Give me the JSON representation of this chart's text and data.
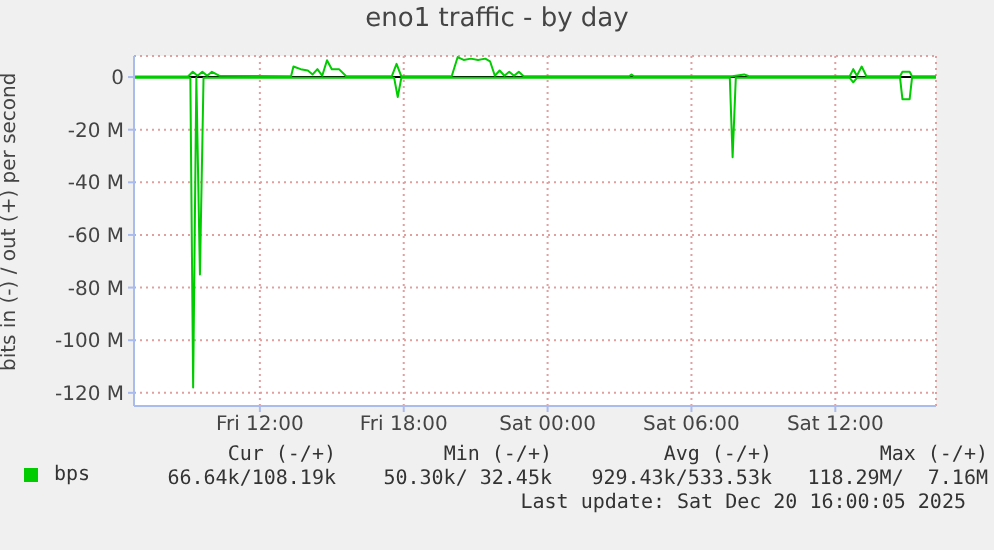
{
  "chart_data": {
    "type": "line",
    "title": "eno1 traffic - by day",
    "ylabel": "bits in (-) / out (+) per second",
    "xlim": [
      "2025-12-19T06:45",
      "2025-12-20T16:12"
    ],
    "xticks": [
      {
        "value": "2025-12-19T12:00",
        "label": "Fri 12:00"
      },
      {
        "value": "2025-12-19T18:00",
        "label": "Fri 18:00"
      },
      {
        "value": "2025-12-20T00:00",
        "label": "Sat 00:00"
      },
      {
        "value": "2025-12-20T06:00",
        "label": "Sat 06:00"
      },
      {
        "value": "2025-12-20T12:00",
        "label": "Sat 12:00"
      }
    ],
    "ylim": [
      -125,
      8
    ],
    "yticks": [
      {
        "value": -120,
        "label": "-120 M"
      },
      {
        "value": -100,
        "label": "-100 M"
      },
      {
        "value": -80,
        "label": "-80 M"
      },
      {
        "value": -60,
        "label": "-60 M"
      },
      {
        "value": -40,
        "label": "-40 M"
      },
      {
        "value": -20,
        "label": "-20 M"
      },
      0
    ],
    "grid": true,
    "legend": "bottom left",
    "marker": "none",
    "line_style": "solid",
    "ref_lines": [
      {
        "axis": "y",
        "value": 0,
        "label": null,
        "color": "#000000"
      }
    ],
    "series": [
      {
        "name": "bps",
        "color": "#00cc00",
        "x": [
          "2025-12-19T06:45",
          "2025-12-19T09:06",
          "2025-12-19T09:13",
          "2025-12-19T09:21",
          "2025-12-19T09:30",
          "2025-12-19T09:39",
          "2025-12-19T17:36",
          "2025-12-19T17:45",
          "2025-12-19T17:54",
          "2025-12-20T07:36",
          "2025-12-20T07:43",
          "2025-12-20T07:51",
          "2025-12-20T12:36",
          "2025-12-20T12:45",
          "2025-12-20T12:54",
          "2025-12-20T14:42",
          "2025-12-20T14:48",
          "2025-12-20T15:06",
          "2025-12-20T15:12",
          "2025-12-20T16:12"
        ],
        "values": [
          -0.3,
          -0.3,
          -118,
          -0.3,
          -75,
          -0.3,
          -0.3,
          -7.6,
          -0.3,
          -0.3,
          -30.5,
          -0.3,
          -0.3,
          -2,
          -0.3,
          -0.3,
          -8.4,
          -8.4,
          -0.3,
          -0.3
        ]
      },
      {
        "color": "#00cc00",
        "x": [
          "2025-12-19T06:45",
          "2025-12-19T09:00",
          "2025-12-19T09:12",
          "2025-12-19T09:24",
          "2025-12-19T09:36",
          "2025-12-19T09:48",
          "2025-12-19T10:00",
          "2025-12-19T10:18",
          "2025-12-19T13:18",
          "2025-12-19T13:24",
          "2025-12-19T13:42",
          "2025-12-19T14:00",
          "2025-12-19T14:12",
          "2025-12-19T14:24",
          "2025-12-19T14:36",
          "2025-12-19T14:48",
          "2025-12-19T15:00",
          "2025-12-19T15:18",
          "2025-12-19T15:36",
          "2025-12-19T17:30",
          "2025-12-19T17:42",
          "2025-12-19T17:54",
          "2025-12-19T20:00",
          "2025-12-19T20:15",
          "2025-12-19T20:30",
          "2025-12-19T20:48",
          "2025-12-19T21:06",
          "2025-12-19T21:24",
          "2025-12-19T21:36",
          "2025-12-19T21:48",
          "2025-12-19T22:00",
          "2025-12-19T22:12",
          "2025-12-19T22:24",
          "2025-12-19T22:36",
          "2025-12-19T22:48",
          "2025-12-19T23:00",
          "2025-12-20T03:24",
          "2025-12-20T03:30",
          "2025-12-20T03:36",
          "2025-12-20T07:42",
          "2025-12-20T08:12",
          "2025-12-20T08:24",
          "2025-12-20T12:36",
          "2025-12-20T12:45",
          "2025-12-20T12:54",
          "2025-12-20T13:06",
          "2025-12-20T13:18",
          "2025-12-20T14:42",
          "2025-12-20T14:48",
          "2025-12-20T15:06",
          "2025-12-20T15:12",
          "2025-12-20T16:12"
        ],
        "values": [
          0.2,
          0.2,
          2,
          0.5,
          2,
          0.5,
          2,
          0.5,
          0.3,
          4,
          3,
          2.5,
          1,
          3,
          0.5,
          6.4,
          3,
          3,
          0.3,
          0.3,
          5,
          0.3,
          0.3,
          7.6,
          6.5,
          7,
          6.5,
          7,
          6,
          0.5,
          2.5,
          0.5,
          2,
          0.5,
          2,
          0.3,
          0.3,
          1,
          0.3,
          0.3,
          1,
          0.3,
          0.3,
          3,
          0.5,
          4,
          0.3,
          0.3,
          2,
          2,
          0.3,
          0.3
        ]
      }
    ],
    "annotations": [
      "Cur (-/+)",
      "Min (-/+)",
      "Avg (-/+)",
      "Max (-/+)",
      "66.64k/108.19k",
      "50.30k/ 32.45k",
      "929.43k/533.53k",
      "118.29M/  7.16M",
      "Last update: Sat Dec 20 16:00:05 2025"
    ]
  }
}
